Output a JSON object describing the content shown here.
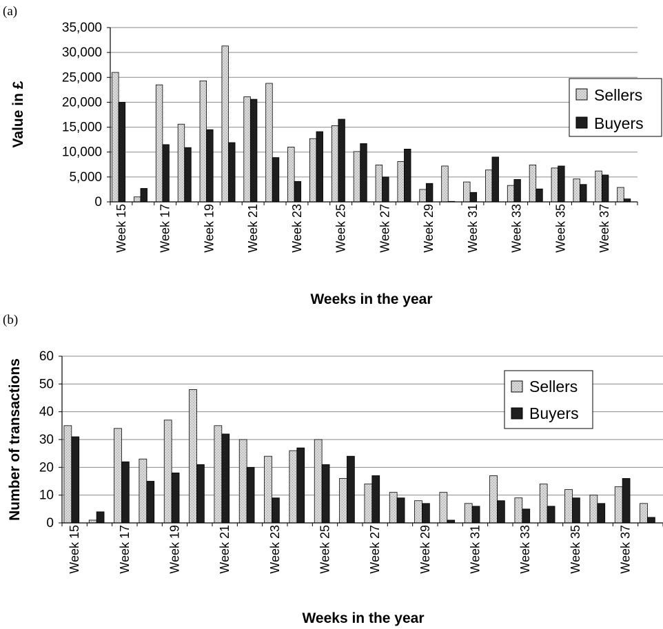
{
  "panels": [
    {
      "letter": "(a)"
    },
    {
      "letter": "(b)"
    }
  ],
  "colors": {
    "sellers": "#d9d9d9",
    "buyers": "#1e1e1e",
    "gridline": "#8a8a8a",
    "axis": "#000000"
  },
  "chart_data": [
    {
      "type": "bar",
      "title": "",
      "xlabel": "Weeks in the year",
      "ylabel": "Value in £",
      "ylim": [
        0,
        35000
      ],
      "yticks": [
        "0",
        "5,000",
        "10,000",
        "15,000",
        "20,000",
        "25,000",
        "30,000",
        "35,000"
      ],
      "ytick_values": [
        0,
        5000,
        10000,
        15000,
        20000,
        25000,
        30000,
        35000
      ],
      "grid": true,
      "legend_position": "right",
      "categories": [
        "Week 15",
        "Week 16",
        "Week 17",
        "Week 18",
        "Week 19",
        "Week 20",
        "Week 21",
        "Week 22",
        "Week 23",
        "Week 24",
        "Week 25",
        "Week 26",
        "Week 27",
        "Week 28",
        "Week 29",
        "Week 30",
        "Week 31",
        "Week 32",
        "Week 33",
        "Week 34",
        "Week 35",
        "Week 36",
        "Week 37",
        "Week 38"
      ],
      "visible_tick_labels": [
        "Week 15",
        "Week 17",
        "Week 19",
        "Week 21",
        "Week 23",
        "Week 25",
        "Week 27",
        "Week 29",
        "Week 31",
        "Week 33",
        "Week 35",
        "Week 37"
      ],
      "series": [
        {
          "name": "Sellers",
          "values": [
            26000,
            1000,
            23500,
            15600,
            24300,
            31300,
            21100,
            23800,
            11000,
            12700,
            15300,
            10100,
            7400,
            8100,
            2500,
            7200,
            4000,
            6400,
            3300,
            7400,
            6800,
            4600,
            6200,
            2900
          ]
        },
        {
          "name": "Buyers",
          "values": [
            20000,
            2700,
            11500,
            10900,
            14500,
            11900,
            20600,
            8900,
            4100,
            14100,
            16600,
            11700,
            5000,
            10600,
            3700,
            100,
            1900,
            9000,
            4500,
            2600,
            7200,
            3500,
            5400,
            600
          ]
        }
      ]
    },
    {
      "type": "bar",
      "title": "",
      "xlabel": "Weeks in the year",
      "ylabel": "Number of transactions",
      "ylim": [
        0,
        60
      ],
      "yticks": [
        "0",
        "10",
        "20",
        "30",
        "40",
        "50",
        "60"
      ],
      "ytick_values": [
        0,
        10,
        20,
        30,
        40,
        50,
        60
      ],
      "grid": true,
      "legend_position": "right",
      "categories": [
        "Week 15",
        "Week 16",
        "Week 17",
        "Week 18",
        "Week 19",
        "Week 20",
        "Week 21",
        "Week 22",
        "Week 23",
        "Week 24",
        "Week 25",
        "Week 26",
        "Week 27",
        "Week 28",
        "Week 29",
        "Week 30",
        "Week 31",
        "Week 32",
        "Week 33",
        "Week 34",
        "Week 35",
        "Week 36",
        "Week 37",
        "Week 38"
      ],
      "visible_tick_labels": [
        "Week 15",
        "Week 17",
        "Week 19",
        "Week 21",
        "Week 23",
        "Week 25",
        "Week 27",
        "Week 29",
        "Week 31",
        "Week 33",
        "Week 35",
        "Week 37"
      ],
      "series": [
        {
          "name": "Sellers",
          "values": [
            35,
            1,
            34,
            23,
            37,
            48,
            35,
            30,
            24,
            26,
            30,
            16,
            14,
            11,
            8,
            11,
            7,
            17,
            9,
            14,
            12,
            10,
            13,
            7
          ]
        },
        {
          "name": "Buyers",
          "values": [
            31,
            4,
            22,
            15,
            18,
            21,
            32,
            20,
            9,
            27,
            21,
            24,
            17,
            9,
            7,
            1,
            6,
            8,
            5,
            6,
            9,
            7,
            16,
            2
          ]
        }
      ]
    }
  ]
}
